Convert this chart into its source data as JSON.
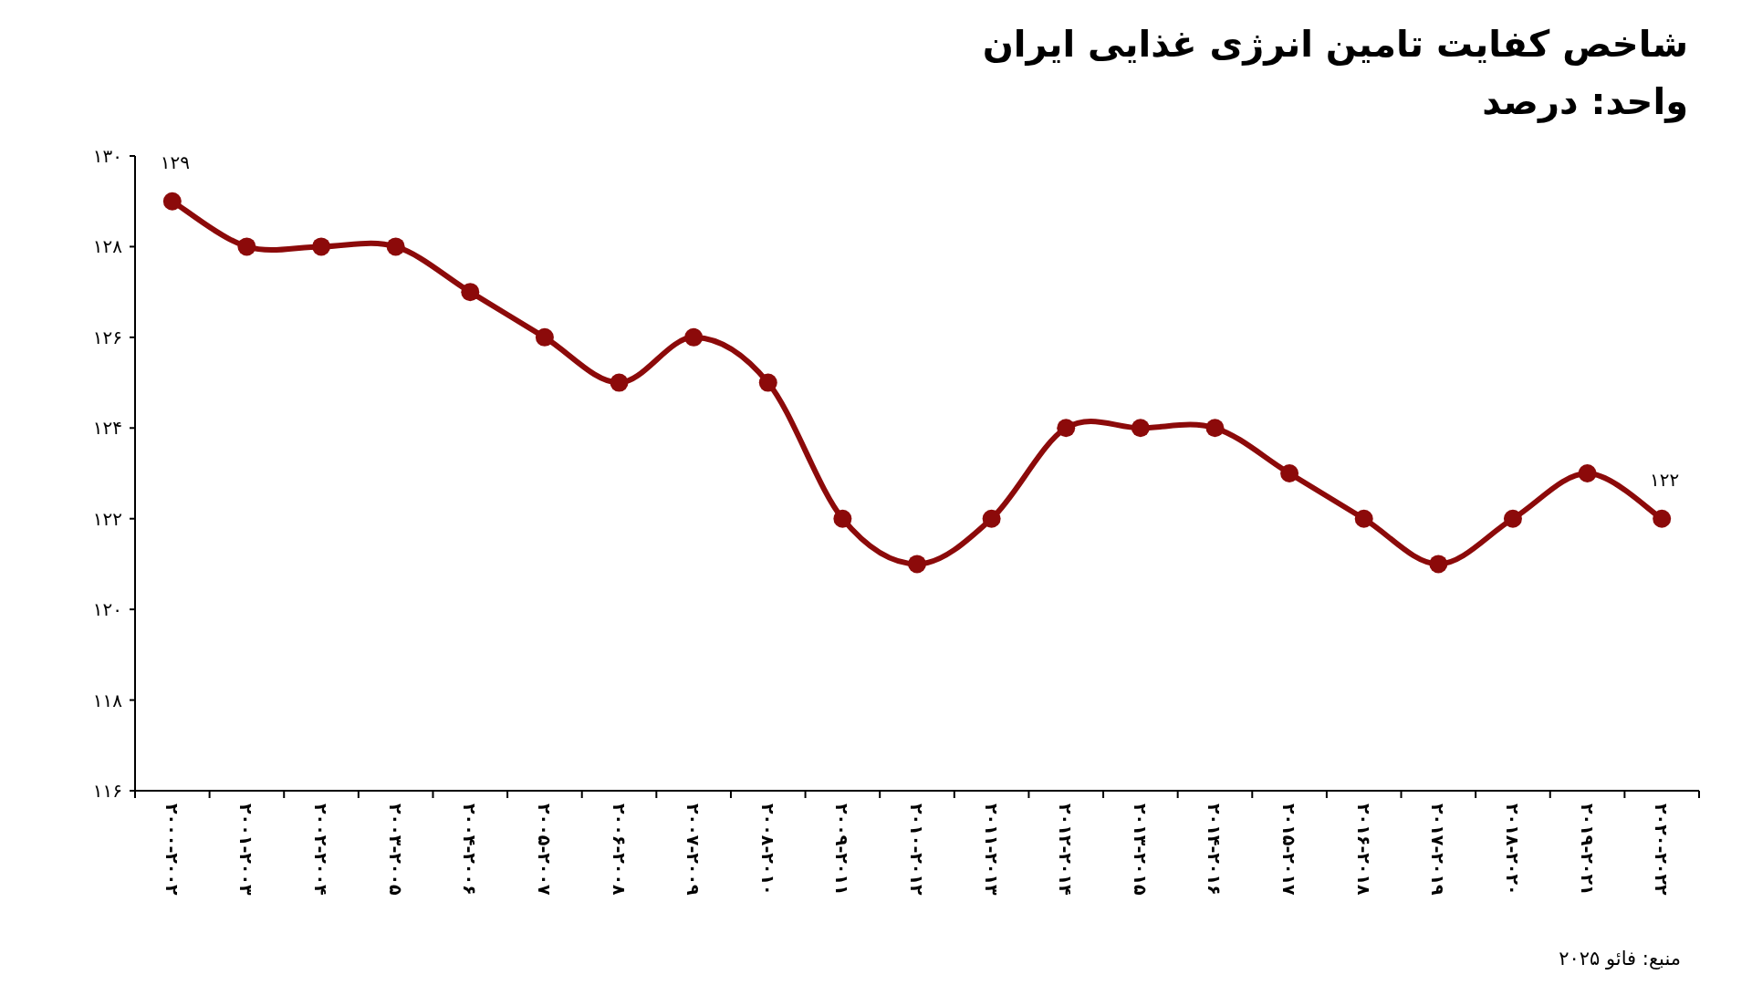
{
  "chart_data": {
    "type": "line",
    "title": "شاخص کفایت تامین انرژی غذایی ایران",
    "subtitle": "واحد: درصد",
    "categories": [
      "۲۰۰۰-۲۰۰۲",
      "۲۰۰۱-۲۰۰۳",
      "۲۰۰۲-۲۰۰۴",
      "۲۰۰۳-۲۰۰۵",
      "۲۰۰۴-۲۰۰۶",
      "۲۰۰۵-۲۰۰۷",
      "۲۰۰۶-۲۰۰۸",
      "۲۰۰۷-۲۰۰۹",
      "۲۰۰۸-۲۰۱۰",
      "۲۰۰۹-۲۰۱۱",
      "۲۰۱۰-۲۰۱۲",
      "۲۰۱۱-۲۰۱۳",
      "۲۰۱۲-۲۰۱۴",
      "۲۰۱۳-۲۰۱۵",
      "۲۰۱۴-۲۰۱۶",
      "۲۰۱۵-۲۰۱۷",
      "۲۰۱۶-۲۰۱۸",
      "۲۰۱۷-۲۰۱۹",
      "۲۰۱۸-۲۰۲۰",
      "۲۰۱۹-۲۰۲۱",
      "۲۰۲۰-۲۰۲۲"
    ],
    "series": [
      {
        "color": "#8c0a0a",
        "values": [
          129,
          128,
          128,
          128,
          127,
          126,
          125,
          126,
          125,
          122,
          121,
          122,
          124,
          124,
          124,
          123,
          122,
          121,
          122,
          123,
          122
        ],
        "value_labels": [
          "۱۲۹",
          null,
          null,
          null,
          null,
          null,
          null,
          null,
          null,
          null,
          null,
          null,
          null,
          null,
          null,
          null,
          null,
          null,
          null,
          null,
          "۱۲۲"
        ]
      }
    ],
    "ylim": [
      116,
      130
    ],
    "yticks": [
      {
        "value": 116,
        "label": "۱۱۶"
      },
      {
        "value": 118,
        "label": "۱۱۸"
      },
      {
        "value": 120,
        "label": "۱۲۰"
      },
      {
        "value": 122,
        "label": "۱۲۲"
      },
      {
        "value": 124,
        "label": "۱۲۴"
      },
      {
        "value": 126,
        "label": "۱۲۶"
      },
      {
        "value": 128,
        "label": "۱۲۸"
      },
      {
        "value": 130,
        "label": "۱۳۰"
      }
    ],
    "marker": "circle",
    "line_style": "solid",
    "annotations": [
      "منبع: فائو ۲۰۲۵"
    ]
  }
}
